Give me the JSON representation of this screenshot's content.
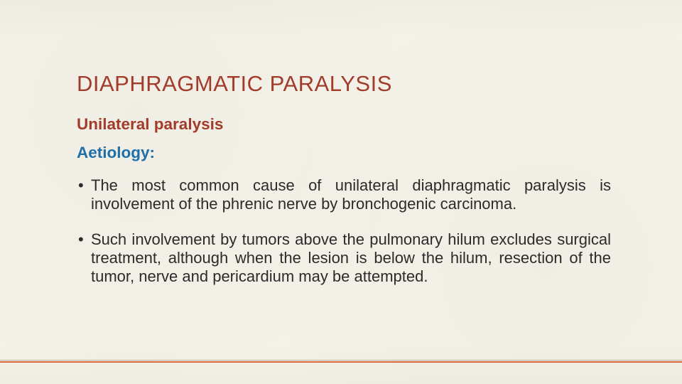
{
  "title": "DIAPHRAGMATIC PARALYSIS",
  "subheading": "Unilateral paralysis",
  "aetiology_label": "Aetiology:",
  "bullets": [
    "The most common cause of unilateral diaphragmatic paralysis is involvement of the phrenic nerve by bronchogenic carcinoma.",
    "Such involvement by tumors above the pulmonary hilum excludes surgical treatment, although when the lesion is below the hilum, resection of the tumor, nerve and pericardium may be attempted."
  ],
  "colors": {
    "title": "#a23c2a",
    "subheading": "#a23c2a",
    "aetiology": "#1f6fa8",
    "body_text": "#2b2b2b",
    "rule_thin": "#b7b1a3",
    "rule_thick": "#d56a3a",
    "background": "#f4f1e8"
  },
  "typography": {
    "title_fontsize": 31,
    "subheading_fontsize": 22.5,
    "body_fontsize": 22,
    "title_weight": 400,
    "subheading_weight": 700,
    "body_weight": 400
  }
}
